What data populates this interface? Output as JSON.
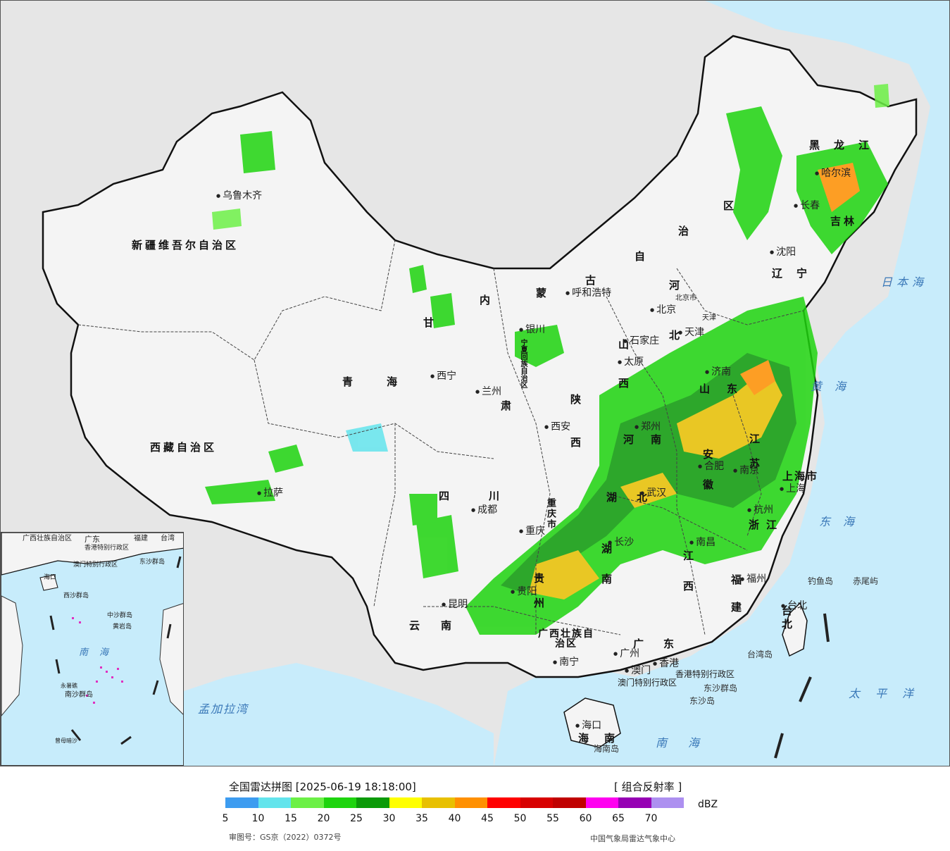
{
  "legend": {
    "title": "全国雷达拼图 [2025-06-19 18:18:00]",
    "product": "[ 组合反射率 ]",
    "unit": "dBZ",
    "approval": "审图号：GS京（2022）0372号",
    "credit": "中国气象局雷达气象中心",
    "ticks": [
      "5",
      "10",
      "15",
      "20",
      "25",
      "30",
      "35",
      "40",
      "45",
      "50",
      "55",
      "60",
      "65",
      "70"
    ],
    "colors": [
      "#3d9cf0",
      "#63e4ec",
      "#6cf046",
      "#1ed40e",
      "#0b9a08",
      "#ffff00",
      "#e8c000",
      "#ff9000",
      "#ff0000",
      "#d80000",
      "#c00000",
      "#ff00f0",
      "#9600b4",
      "#ad90f0"
    ]
  },
  "regions": {
    "xinjiang": "新疆维吾尔自治区",
    "xizang": "西藏自治区",
    "qinghai": "青海",
    "gansu": "甘",
    "gansu2": "肃",
    "neimenggu": [
      "内",
      "蒙",
      "古",
      "自",
      "治",
      "区"
    ],
    "heilongjiang": "黑龙江",
    "jilin": "吉林",
    "liaoning": "辽宁",
    "hebei": "河北",
    "shanxi": "山西",
    "shandong": "山东",
    "henan": "河南",
    "shaanxi": "陕西",
    "ningxia": "宁夏回族自治区",
    "sichuan": "四川",
    "chongqing": "重庆市",
    "hubei": "湖北",
    "hunan": "湖南",
    "jiangxi": "江西",
    "anhui": "安徽",
    "jiangsu": "江苏",
    "zhejiang": "浙江",
    "fujian": "福建",
    "guangdong": "广东",
    "guangxi": "广西壮族自治区",
    "guizhou": "贵州",
    "yunnan": "云南",
    "hainan": "海南",
    "shanghai": "上海市",
    "tianjin": "天津",
    "beijing": "北京市",
    "taiwan": "台北",
    "taiwan_prov": "台湾",
    "hk_sar": "香港特别行政区",
    "macao_sar": "澳门特别行政区"
  },
  "cities": {
    "urumqi": "乌鲁木齐",
    "lhasa": "拉萨",
    "xining": "西宁",
    "lanzhou": "兰州",
    "yinchuan": "银川",
    "hohhot": "呼和浩特",
    "beijing": "北京",
    "tianjin": "天津",
    "shijiazhuang": "石家庄",
    "taiyuan": "太原",
    "jinan": "济南",
    "zhengzhou": "郑州",
    "xian": "西安",
    "chengdu": "成都",
    "chongqing": "重庆",
    "wuhan": "武汉",
    "hefei": "合肥",
    "nanjing": "南京",
    "shanghai": "上海",
    "hangzhou": "杭州",
    "nanchang": "南昌",
    "changsha": "长沙",
    "guiyang": "贵阳",
    "kunming": "昆明",
    "nanning": "南宁",
    "guangzhou": "广州",
    "hongkong": "香港",
    "macao": "澳门",
    "haikou": "海口",
    "fuzhou": "福州",
    "taipei": "台北",
    "shenyang": "沈阳",
    "changchun": "长春",
    "harbin": "哈尔滨"
  },
  "seas": {
    "japan_sea": "日本海",
    "east_sea": "东海",
    "pacific": "太平洋",
    "south_sea": "南海",
    "bengal": "孟加拉湾",
    "huanghai": "黄海"
  },
  "islands": {
    "diaoyu": "钓鱼岛",
    "chiwei": "赤尾屿",
    "taiwan_island": "台湾岛",
    "hainan_island": "海南岛",
    "dongsha": "东沙群岛",
    "dongsha2": "东沙岛"
  },
  "inset": {
    "guangxi": "广西壮族自治区",
    "guangdong": "广东",
    "fujian": "福建",
    "taiwan": "台湾",
    "hk": "香港特别行政区",
    "macao": "澳门特别行政区",
    "dongsha": "东沙群岛",
    "xisha": "西沙群岛",
    "zhongsha": "中沙群岛",
    "huangyan": "黄岩岛",
    "nansha": "南沙群岛",
    "south_sea": "南海",
    "haikou": "海口",
    "yongshu": "永暑礁",
    "zengmu": "曾母暗沙"
  }
}
